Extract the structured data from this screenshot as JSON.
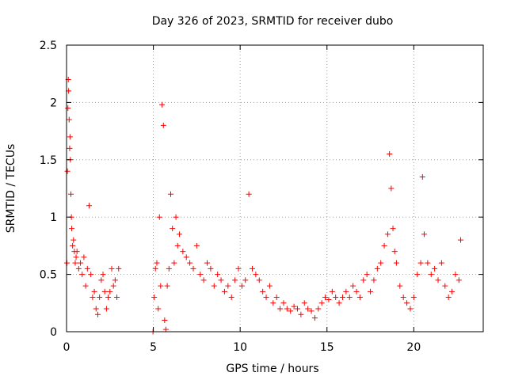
{
  "chart_data": {
    "type": "scatter",
    "title": "Day 326 of 2023, SRMTID for receiver dubo",
    "xlabel": "GPS time / hours",
    "ylabel": "SRMTID / TECUs",
    "xlim": [
      0,
      24
    ],
    "ylim": [
      0,
      2.5
    ],
    "xticks": [
      0,
      5,
      10,
      15,
      20
    ],
    "yticks": [
      0,
      0.5,
      1,
      1.5,
      2,
      2.5
    ],
    "xtick_labels": [
      "0",
      "5",
      "10",
      "15",
      "20"
    ],
    "ytick_labels": [
      "0",
      "0.5",
      "1",
      "1.5",
      "2",
      "2.5"
    ],
    "grid": true,
    "marker": "+",
    "color": "#ff0000",
    "series": [
      {
        "name": "SRMTID",
        "x": [
          0.02,
          0.05,
          0.08,
          0.1,
          0.12,
          0.15,
          0.18,
          0.2,
          0.22,
          0.25,
          0.28,
          0.3,
          0.35,
          0.4,
          0.45,
          0.5,
          0.55,
          0.6,
          0.7,
          0.8,
          0.9,
          1.0,
          1.1,
          1.2,
          1.3,
          1.4,
          1.5,
          1.6,
          1.7,
          1.8,
          1.9,
          2.0,
          2.1,
          2.2,
          2.3,
          2.4,
          2.5,
          2.6,
          2.7,
          2.8,
          2.9,
          3.0,
          4.98,
          5.05,
          5.12,
          5.2,
          5.28,
          5.35,
          5.42,
          5.5,
          5.58,
          5.65,
          5.72,
          5.8,
          5.9,
          6.0,
          6.1,
          6.2,
          6.3,
          6.4,
          6.5,
          6.7,
          6.9,
          7.1,
          7.3,
          7.5,
          7.7,
          7.9,
          8.1,
          8.3,
          8.5,
          8.7,
          8.9,
          9.1,
          9.3,
          9.5,
          9.7,
          9.9,
          10.1,
          10.3,
          10.5,
          10.7,
          10.9,
          11.1,
          11.3,
          11.5,
          11.7,
          11.9,
          12.1,
          12.3,
          12.5,
          12.7,
          12.9,
          13.1,
          13.3,
          13.5,
          13.7,
          13.9,
          14.1,
          14.3,
          14.5,
          14.7,
          14.9,
          15.1,
          15.3,
          15.5,
          15.7,
          15.9,
          16.1,
          16.3,
          16.5,
          16.7,
          16.9,
          17.1,
          17.3,
          17.5,
          17.7,
          17.9,
          18.1,
          18.3,
          18.5,
          18.6,
          18.7,
          18.8,
          18.9,
          19.0,
          19.2,
          19.4,
          19.6,
          19.8,
          20.0,
          20.2,
          20.4,
          20.5,
          20.6,
          20.8,
          21.0,
          21.2,
          21.4,
          21.6,
          21.8,
          22.0,
          22.2,
          22.4,
          22.6,
          22.7
        ],
        "y": [
          0.6,
          1.4,
          1.95,
          2.2,
          2.1,
          1.85,
          1.6,
          1.7,
          1.5,
          1.2,
          1.0,
          0.9,
          0.75,
          0.8,
          0.7,
          0.6,
          0.65,
          0.7,
          0.55,
          0.6,
          0.5,
          0.65,
          0.4,
          0.55,
          1.1,
          0.5,
          0.3,
          0.35,
          0.2,
          0.15,
          0.3,
          0.45,
          0.5,
          0.35,
          0.2,
          0.3,
          0.35,
          0.55,
          0.4,
          0.45,
          0.3,
          0.55,
          0.0,
          0.3,
          0.55,
          0.6,
          0.2,
          1.0,
          0.4,
          1.98,
          1.8,
          0.1,
          0.02,
          0.4,
          0.55,
          1.2,
          0.9,
          0.6,
          1.0,
          0.75,
          0.85,
          0.7,
          0.65,
          0.6,
          0.55,
          0.75,
          0.5,
          0.45,
          0.6,
          0.55,
          0.4,
          0.5,
          0.45,
          0.35,
          0.4,
          0.3,
          0.45,
          0.55,
          0.4,
          0.45,
          1.2,
          0.55,
          0.5,
          0.45,
          0.35,
          0.3,
          0.4,
          0.25,
          0.3,
          0.2,
          0.25,
          0.2,
          0.18,
          0.22,
          0.2,
          0.15,
          0.25,
          0.2,
          0.18,
          0.12,
          0.2,
          0.25,
          0.3,
          0.28,
          0.35,
          0.3,
          0.25,
          0.3,
          0.35,
          0.3,
          0.4,
          0.35,
          0.3,
          0.45,
          0.5,
          0.35,
          0.45,
          0.55,
          0.6,
          0.75,
          0.85,
          1.55,
          1.25,
          0.9,
          0.7,
          0.6,
          0.4,
          0.3,
          0.25,
          0.2,
          0.3,
          0.5,
          0.6,
          1.35,
          0.85,
          0.6,
          0.5,
          0.55,
          0.45,
          0.6,
          0.4,
          0.3,
          0.35,
          0.5,
          0.45,
          0.8
        ]
      }
    ]
  }
}
